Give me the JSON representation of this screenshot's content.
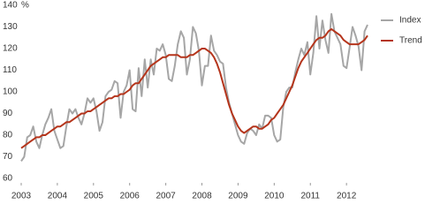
{
  "chart_data": {
    "type": "line",
    "y_label": "%",
    "x": [
      2003,
      2003.083,
      2003.167,
      2003.25,
      2003.333,
      2003.417,
      2003.5,
      2003.583,
      2003.667,
      2003.75,
      2003.833,
      2003.917,
      2004,
      2004.083,
      2004.167,
      2004.25,
      2004.333,
      2004.417,
      2004.5,
      2004.583,
      2004.667,
      2004.75,
      2004.833,
      2004.917,
      2005,
      2005.083,
      2005.167,
      2005.25,
      2005.333,
      2005.417,
      2005.5,
      2005.583,
      2005.667,
      2005.75,
      2005.833,
      2005.917,
      2006,
      2006.083,
      2006.167,
      2006.25,
      2006.333,
      2006.417,
      2006.5,
      2006.583,
      2006.667,
      2006.75,
      2006.833,
      2006.917,
      2007,
      2007.083,
      2007.167,
      2007.25,
      2007.333,
      2007.417,
      2007.5,
      2007.583,
      2007.667,
      2007.75,
      2007.833,
      2007.917,
      2008,
      2008.083,
      2008.167,
      2008.25,
      2008.333,
      2008.417,
      2008.5,
      2008.583,
      2008.667,
      2008.75,
      2008.833,
      2008.917,
      2009,
      2009.083,
      2009.167,
      2009.25,
      2009.333,
      2009.417,
      2009.5,
      2009.583,
      2009.667,
      2009.75,
      2009.833,
      2009.917,
      2010,
      2010.083,
      2010.167,
      2010.25,
      2010.333,
      2010.417,
      2010.5,
      2010.583,
      2010.667,
      2010.75,
      2010.833,
      2010.917,
      2011,
      2011.083,
      2011.167,
      2011.25,
      2011.333,
      2011.417,
      2011.5,
      2011.583,
      2011.667,
      2011.75,
      2011.833,
      2011.917,
      2012,
      2012.083,
      2012.167,
      2012.25,
      2012.333,
      2012.417,
      2012.5,
      2012.583
    ],
    "series": [
      {
        "name": "Index",
        "color": "#a6a6a6",
        "width": 2,
        "values": [
          68,
          70,
          79,
          80,
          84,
          77,
          74,
          80,
          85,
          88,
          92,
          82,
          78,
          74,
          75,
          84,
          92,
          90,
          92,
          88,
          85,
          90,
          97,
          95,
          97,
          91,
          82,
          86,
          98,
          100,
          101,
          105,
          104,
          88,
          100,
          103,
          110,
          92,
          91,
          111,
          98,
          115,
          102,
          115,
          108,
          120,
          119,
          122,
          117,
          106,
          105,
          112,
          122,
          128,
          125,
          108,
          115,
          130,
          127,
          119,
          103,
          112,
          112,
          126,
          119,
          117,
          114,
          113,
          102,
          95,
          90,
          85,
          80,
          77,
          76,
          81,
          83,
          82,
          80,
          85,
          83,
          89,
          89,
          88,
          80,
          77,
          78,
          93,
          100,
          102,
          102,
          109,
          115,
          120,
          117,
          123,
          108,
          118,
          135,
          120,
          133,
          124,
          118,
          136,
          128,
          125,
          122,
          112,
          111,
          120,
          130,
          126,
          121,
          110,
          128,
          131
        ]
      },
      {
        "name": "Trend",
        "color": "#b5351c",
        "width": 2,
        "values": [
          74,
          75,
          76,
          77,
          78,
          79,
          79,
          80,
          80,
          81,
          82,
          83,
          84,
          84,
          85,
          86,
          86,
          87,
          88,
          89,
          90,
          90,
          91,
          91,
          92,
          93,
          94,
          95,
          96,
          97,
          97,
          98,
          98,
          99,
          99,
          100,
          101,
          103,
          104,
          104,
          106,
          108,
          110,
          112,
          113,
          114,
          115,
          116,
          116,
          117,
          117,
          117,
          117,
          116,
          116,
          116,
          117,
          117,
          118,
          119,
          120,
          120,
          119,
          118,
          116,
          113,
          109,
          104,
          99,
          94,
          90,
          87,
          84,
          82,
          81,
          82,
          83,
          84,
          84,
          83,
          83,
          84,
          85,
          87,
          88,
          90,
          92,
          94,
          97,
          100,
          103,
          107,
          111,
          114,
          116,
          118,
          120,
          122,
          124,
          125,
          125,
          126,
          128,
          129,
          128,
          127,
          126,
          124,
          123,
          122,
          122,
          122,
          122,
          123,
          124,
          126
        ]
      }
    ],
    "xlim": [
      2003,
      2012.583
    ],
    "xticks": [
      2003,
      2004,
      2005,
      2006,
      2007,
      2008,
      2009,
      2010,
      2011,
      2012
    ],
    "ylim": [
      60,
      140
    ],
    "yticks": [
      60,
      70,
      80,
      90,
      100,
      110,
      120,
      130,
      140
    ],
    "legend": "right"
  }
}
